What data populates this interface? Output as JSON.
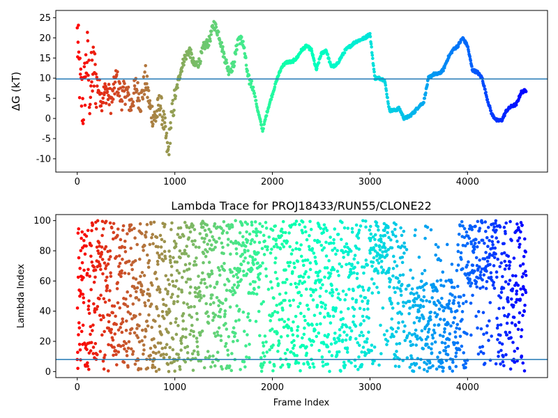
{
  "chart_data": [
    {
      "type": "scatter",
      "title": "",
      "xlabel": "",
      "ylabel": "ΔG (kT)",
      "xlim": [
        -220,
        4820
      ],
      "ylim": [
        -13.3,
        26.8
      ],
      "xticks": [
        0,
        1000,
        2000,
        3000,
        4000
      ],
      "yticks": [
        -10,
        -5,
        0,
        5,
        10,
        15,
        20,
        25
      ],
      "hline": 9.8,
      "hline_color": "#1f77b4",
      "colormap": "rainbow (red at frame 0 → violet at the last frame)",
      "n_frames": 4600,
      "grid": false,
      "trace": [
        [
          0,
          20
        ],
        [
          30,
          8
        ],
        [
          60,
          3
        ],
        [
          100,
          16
        ],
        [
          130,
          6
        ],
        [
          160,
          12
        ],
        [
          200,
          9
        ],
        [
          250,
          5
        ],
        [
          300,
          7
        ],
        [
          350,
          4
        ],
        [
          400,
          10
        ],
        [
          450,
          5
        ],
        [
          500,
          7
        ],
        [
          550,
          3
        ],
        [
          600,
          8
        ],
        [
          650,
          4
        ],
        [
          700,
          10
        ],
        [
          750,
          2
        ],
        [
          800,
          0
        ],
        [
          850,
          4
        ],
        [
          900,
          -3
        ],
        [
          930,
          -9
        ],
        [
          960,
          -1
        ],
        [
          1000,
          5
        ],
        [
          1050,
          11
        ],
        [
          1100,
          15
        ],
        [
          1150,
          17
        ],
        [
          1200,
          13
        ],
        [
          1250,
          14
        ],
        [
          1300,
          18
        ],
        [
          1350,
          19
        ],
        [
          1400,
          23.5
        ],
        [
          1450,
          21
        ],
        [
          1500,
          16
        ],
        [
          1550,
          12
        ],
        [
          1600,
          13
        ],
        [
          1650,
          20
        ],
        [
          1700,
          19
        ],
        [
          1750,
          10
        ],
        [
          1800,
          8
        ],
        [
          1850,
          2
        ],
        [
          1900,
          -3
        ],
        [
          1950,
          2
        ],
        [
          2000,
          6
        ],
        [
          2050,
          10
        ],
        [
          2100,
          13
        ],
        [
          2150,
          14
        ],
        [
          2200,
          14
        ],
        [
          2250,
          15
        ],
        [
          2300,
          17
        ],
        [
          2350,
          18
        ],
        [
          2400,
          17
        ],
        [
          2450,
          12
        ],
        [
          2500,
          16
        ],
        [
          2550,
          17
        ],
        [
          2600,
          13
        ],
        [
          2650,
          13
        ],
        [
          2700,
          15
        ],
        [
          2750,
          17
        ],
        [
          2800,
          18
        ],
        [
          2850,
          19
        ],
        [
          2900,
          19.5
        ],
        [
          2950,
          20
        ],
        [
          3000,
          21
        ],
        [
          3050,
          10
        ],
        [
          3100,
          10
        ],
        [
          3150,
          9.5
        ],
        [
          3200,
          2
        ],
        [
          3250,
          2
        ],
        [
          3300,
          2.5
        ],
        [
          3350,
          0
        ],
        [
          3400,
          0.5
        ],
        [
          3450,
          1.5
        ],
        [
          3500,
          3
        ],
        [
          3550,
          4
        ],
        [
          3600,
          10
        ],
        [
          3650,
          11
        ],
        [
          3700,
          11
        ],
        [
          3750,
          12
        ],
        [
          3800,
          15
        ],
        [
          3850,
          17
        ],
        [
          3900,
          18
        ],
        [
          3950,
          20
        ],
        [
          4000,
          18
        ],
        [
          4050,
          12
        ],
        [
          4100,
          11.5
        ],
        [
          4150,
          10
        ],
        [
          4200,
          5
        ],
        [
          4250,
          1
        ],
        [
          4300,
          -0.5
        ],
        [
          4350,
          -0.5
        ],
        [
          4400,
          2
        ],
        [
          4450,
          3
        ],
        [
          4500,
          3.5
        ],
        [
          4550,
          6.5
        ],
        [
          4600,
          7
        ]
      ]
    },
    {
      "type": "scatter",
      "title": "Lambda Trace for PROJ18433/RUN55/CLONE22",
      "xlabel": "Frame Index",
      "ylabel": "Lambda Index",
      "xlim": [
        -220,
        4820
      ],
      "ylim": [
        -4,
        104
      ],
      "xticks": [
        0,
        1000,
        2000,
        3000,
        4000
      ],
      "yticks": [
        0,
        20,
        40,
        60,
        80,
        100
      ],
      "hline": 8,
      "hline_color": "#1f77b4",
      "colormap": "rainbow (red at frame 0 → violet at the last frame)",
      "n_frames": 4600,
      "grid": false,
      "dense_regions": [
        {
          "x": [
            1650,
            1900
          ],
          "y": [
            60,
            100
          ]
        },
        {
          "x": [
            3000,
            3200
          ],
          "y": [
            65,
            100
          ]
        },
        {
          "x": [
            3400,
            3900
          ],
          "y": [
            0,
            60
          ]
        },
        {
          "x": [
            4000,
            4300
          ],
          "y": [
            55,
            100
          ]
        }
      ]
    }
  ]
}
